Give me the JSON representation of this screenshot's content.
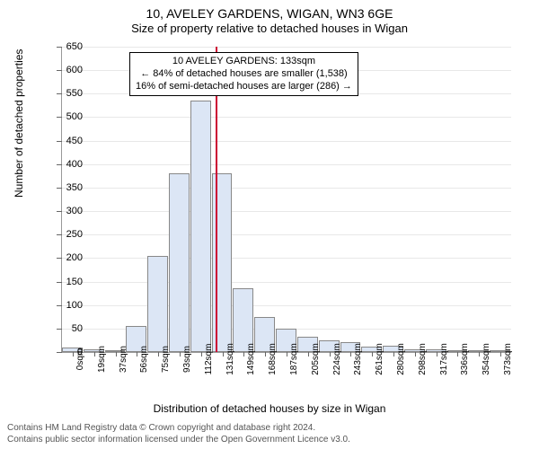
{
  "title": "10, AVELEY GARDENS, WIGAN, WN3 6GE",
  "subtitle": "Size of property relative to detached houses in Wigan",
  "ylabel": "Number of detached properties",
  "xlabel": "Distribution of detached houses by size in Wigan",
  "chart": {
    "type": "histogram",
    "ylim": [
      0,
      650
    ],
    "ytick_step": 50,
    "bar_fill": "#dce6f5",
    "bar_border": "#888888",
    "grid_color": "#e8e8e8",
    "background_color": "#ffffff",
    "categories": [
      "0sqm",
      "19sqm",
      "37sqm",
      "56sqm",
      "75sqm",
      "93sqm",
      "112sqm",
      "131sqm",
      "149sqm",
      "168sqm",
      "187sqm",
      "205sqm",
      "224sqm",
      "243sqm",
      "261sqm",
      "280sqm",
      "298sqm",
      "317sqm",
      "336sqm",
      "354sqm",
      "373sqm"
    ],
    "values": [
      10,
      5,
      3,
      55,
      205,
      380,
      535,
      380,
      135,
      75,
      50,
      32,
      25,
      22,
      12,
      14,
      6,
      5,
      3,
      3,
      3
    ],
    "ref_line": {
      "position_index": 7.2,
      "color": "#cc0033"
    }
  },
  "annotation": {
    "line1": "10 AVELEY GARDENS: 133sqm",
    "line2": "← 84% of detached houses are smaller (1,538)",
    "line3": "16% of semi-detached houses are larger (286) →"
  },
  "attribution": {
    "line1": "Contains HM Land Registry data © Crown copyright and database right 2024.",
    "line2": "Contains public sector information licensed under the Open Government Licence v3.0."
  },
  "fonts": {
    "title": 14,
    "subtitle": 13,
    "axis_label": 12,
    "tick": 11
  }
}
